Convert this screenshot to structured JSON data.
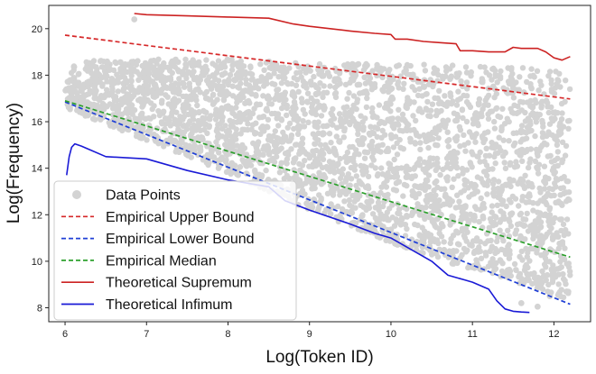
{
  "chart_data": {
    "type": "scatter",
    "xlabel": "Log(Token ID)",
    "ylabel": "Log(Frequency)",
    "xlim": [
      5.8,
      12.45
    ],
    "ylim": [
      7.4,
      21.0
    ],
    "xticks": [
      6,
      7,
      8,
      9,
      10,
      11,
      12
    ],
    "yticks": [
      8,
      10,
      12,
      14,
      16,
      18,
      20
    ],
    "grid": false,
    "legend_position": "bottom-left",
    "scatter": {
      "name": "Data Points",
      "color": "#d3d3d3",
      "x_range": [
        6.0,
        12.2
      ],
      "upper_envelope": {
        "x": [
          6.0,
          6.2,
          7.0,
          8.0,
          9.0,
          10.0,
          11.0,
          12.0,
          12.2
        ],
        "y": [
          18.4,
          18.6,
          18.7,
          18.7,
          18.5,
          18.5,
          18.4,
          18.3,
          18.1
        ]
      },
      "lower_envelope": {
        "x": [
          6.0,
          7.0,
          8.0,
          9.0,
          10.0,
          11.0,
          12.0,
          12.2
        ],
        "y": [
          16.6,
          15.2,
          13.8,
          12.2,
          10.8,
          9.6,
          8.6,
          8.3
        ]
      },
      "notable_points": [
        {
          "x": 6.85,
          "y": 20.4
        },
        {
          "x": 11.6,
          "y": 8.2
        },
        {
          "x": 11.8,
          "y": 8.05
        },
        {
          "x": 11.95,
          "y": 8.5
        }
      ]
    },
    "series": [
      {
        "name": "Empirical Upper Bound",
        "style": "dashed",
        "color": "#d62728",
        "x": [
          6.0,
          12.2
        ],
        "y": [
          19.72,
          16.98
        ]
      },
      {
        "name": "Empirical Lower Bound",
        "style": "dashed",
        "color": "#1f3fd6",
        "x": [
          6.0,
          12.2
        ],
        "y": [
          16.85,
          8.15
        ]
      },
      {
        "name": "Empirical Median",
        "style": "dashed",
        "color": "#2ca02c",
        "x": [
          6.0,
          12.2
        ],
        "y": [
          16.9,
          10.18
        ]
      },
      {
        "name": "Theoretical Supremum",
        "style": "solid",
        "color": "#cc2222",
        "x": [
          6.85,
          7.0,
          7.5,
          8.0,
          8.5,
          8.8,
          9.0,
          9.5,
          9.8,
          10.0,
          10.05,
          10.2,
          10.4,
          10.6,
          10.8,
          10.85,
          11.0,
          11.2,
          11.4,
          11.5,
          11.6,
          11.7,
          11.8,
          11.9,
          12.0,
          12.1,
          12.2
        ],
        "y": [
          20.65,
          20.6,
          20.55,
          20.5,
          20.45,
          20.2,
          20.1,
          19.9,
          19.8,
          19.75,
          19.55,
          19.55,
          19.45,
          19.4,
          19.35,
          19.05,
          19.05,
          19.0,
          19.0,
          19.2,
          19.15,
          19.15,
          19.15,
          19.0,
          18.75,
          18.65,
          18.8
        ]
      },
      {
        "name": "Theoretical Infimum",
        "style": "solid",
        "color": "#1a1ad6",
        "x": [
          6.02,
          6.05,
          6.08,
          6.12,
          6.2,
          6.3,
          6.5,
          7.0,
          7.5,
          8.0,
          8.5,
          8.7,
          9.0,
          9.5,
          9.8,
          10.0,
          10.2,
          10.5,
          10.7,
          10.9,
          11.0,
          11.2,
          11.3,
          11.4,
          11.5,
          11.6,
          11.7
        ],
        "y": [
          13.7,
          14.5,
          14.9,
          15.05,
          14.95,
          14.8,
          14.5,
          14.4,
          13.9,
          13.5,
          13.2,
          12.6,
          12.2,
          11.6,
          11.2,
          11.0,
          10.6,
          10.0,
          9.4,
          9.2,
          9.1,
          8.8,
          8.3,
          7.95,
          7.85,
          7.82,
          7.8
        ]
      }
    ],
    "legend": [
      {
        "label": "Data Points",
        "kind": "dot",
        "color": "#d3d3d3"
      },
      {
        "label": "Empirical Upper Bound",
        "kind": "dashed",
        "color": "#d62728"
      },
      {
        "label": "Empirical Lower Bound",
        "kind": "dashed",
        "color": "#1f3fd6"
      },
      {
        "label": "Empirical Median",
        "kind": "dashed",
        "color": "#2ca02c"
      },
      {
        "label": "Theoretical Supremum",
        "kind": "solid",
        "color": "#cc2222"
      },
      {
        "label": "Theoretical Infimum",
        "kind": "solid",
        "color": "#1a1ad6"
      }
    ]
  }
}
